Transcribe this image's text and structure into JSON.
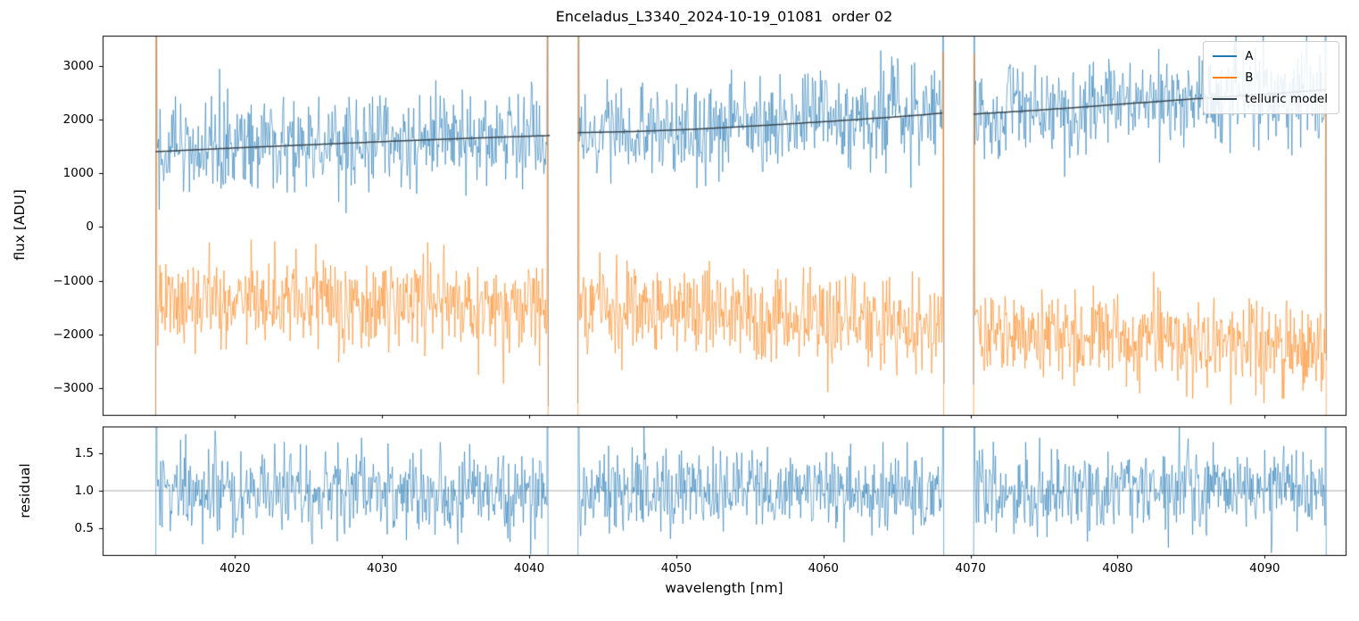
{
  "chart_data": {
    "type": "line",
    "title": "Enceladus_L3340_2024-10-19_01081  order 02",
    "xlabel": "wavelength [nm]",
    "xlim": [
      4011.0,
      4095.5
    ],
    "xticks": [
      4020,
      4030,
      4040,
      4050,
      4060,
      4070,
      4080,
      4090
    ],
    "segments": [
      [
        4014.6,
        4041.3
      ],
      [
        4043.3,
        4068.2
      ],
      [
        4070.2,
        4094.2
      ]
    ],
    "grid": false,
    "legend_position": "upper right",
    "legend": [
      {
        "label": "A",
        "color": "#1f77b4"
      },
      {
        "label": "B",
        "color": "#ff7f0e"
      },
      {
        "label": "telluric model",
        "color": "#37474f"
      }
    ],
    "panels": [
      {
        "name": "flux",
        "ylabel": "flux [ADU]",
        "ylim": [
          -3500,
          3560
        ],
        "yticks": [
          -3000,
          -2000,
          -1000,
          0,
          1000,
          2000,
          3000
        ],
        "tick_format": "int"
      },
      {
        "name": "residual",
        "ylabel": "residual",
        "ylim": [
          0.15,
          1.85
        ],
        "yticks": [
          0.5,
          1.0,
          1.5
        ],
        "tick_format": "dec1",
        "hline": 1.0
      }
    ],
    "series": [
      {
        "name": "A",
        "panel": "flux",
        "color": "#1f77b4",
        "noise_std": 420,
        "seed": 7,
        "baseline": [
          [
            4014.6,
            1400
          ],
          [
            4020,
            1470
          ],
          [
            4026,
            1540
          ],
          [
            4032,
            1610
          ],
          [
            4037,
            1660
          ],
          [
            4041.3,
            1700
          ],
          [
            4043.3,
            1755
          ],
          [
            4047,
            1775
          ],
          [
            4051,
            1815
          ],
          [
            4056,
            1890
          ],
          [
            4061,
            1975
          ],
          [
            4065,
            2050
          ],
          [
            4068.2,
            2120
          ],
          [
            4070.2,
            2100
          ],
          [
            4075,
            2180
          ],
          [
            4080,
            2280
          ],
          [
            4085,
            2380
          ],
          [
            4090,
            2470
          ],
          [
            4094.2,
            2555
          ]
        ]
      },
      {
        "name": "B",
        "panel": "flux",
        "color": "#ff7f0e",
        "noise_std": 430,
        "seed": 13,
        "baseline": [
          [
            4014.6,
            -1380
          ],
          [
            4020,
            -1410
          ],
          [
            4026,
            -1440
          ],
          [
            4032,
            -1465
          ],
          [
            4037,
            -1490
          ],
          [
            4041.3,
            -1510
          ],
          [
            4043.3,
            -1490
          ],
          [
            4050,
            -1575
          ],
          [
            4056,
            -1685
          ],
          [
            4062,
            -1795
          ],
          [
            4068.2,
            -1900
          ],
          [
            4070.2,
            -1935
          ],
          [
            4075,
            -2000
          ],
          [
            4080,
            -2080
          ],
          [
            4085,
            -2160
          ],
          [
            4090,
            -2235
          ],
          [
            4094.2,
            -2290
          ]
        ]
      },
      {
        "name": "telluric model",
        "panel": "flux",
        "color": "#37474f",
        "noise_std": 0,
        "seed": 1,
        "baseline": [
          [
            4014.6,
            1400
          ],
          [
            4020,
            1470
          ],
          [
            4026,
            1540
          ],
          [
            4032,
            1610
          ],
          [
            4037,
            1660
          ],
          [
            4041.3,
            1700
          ],
          [
            4043.3,
            1755
          ],
          [
            4047,
            1775
          ],
          [
            4051,
            1815
          ],
          [
            4056,
            1890
          ],
          [
            4061,
            1975
          ],
          [
            4065,
            2050
          ],
          [
            4068.2,
            2120
          ],
          [
            4070.2,
            2100
          ],
          [
            4075,
            2180
          ],
          [
            4080,
            2280
          ],
          [
            4085,
            2380
          ],
          [
            4090,
            2470
          ],
          [
            4094.2,
            2555
          ]
        ]
      },
      {
        "name": "residual",
        "panel": "residual",
        "color": "#1f77b4",
        "noise_std": 0.28,
        "seed": 21,
        "baseline": [
          [
            4014.6,
            1.0
          ],
          [
            4094.2,
            1.0
          ]
        ]
      }
    ]
  }
}
